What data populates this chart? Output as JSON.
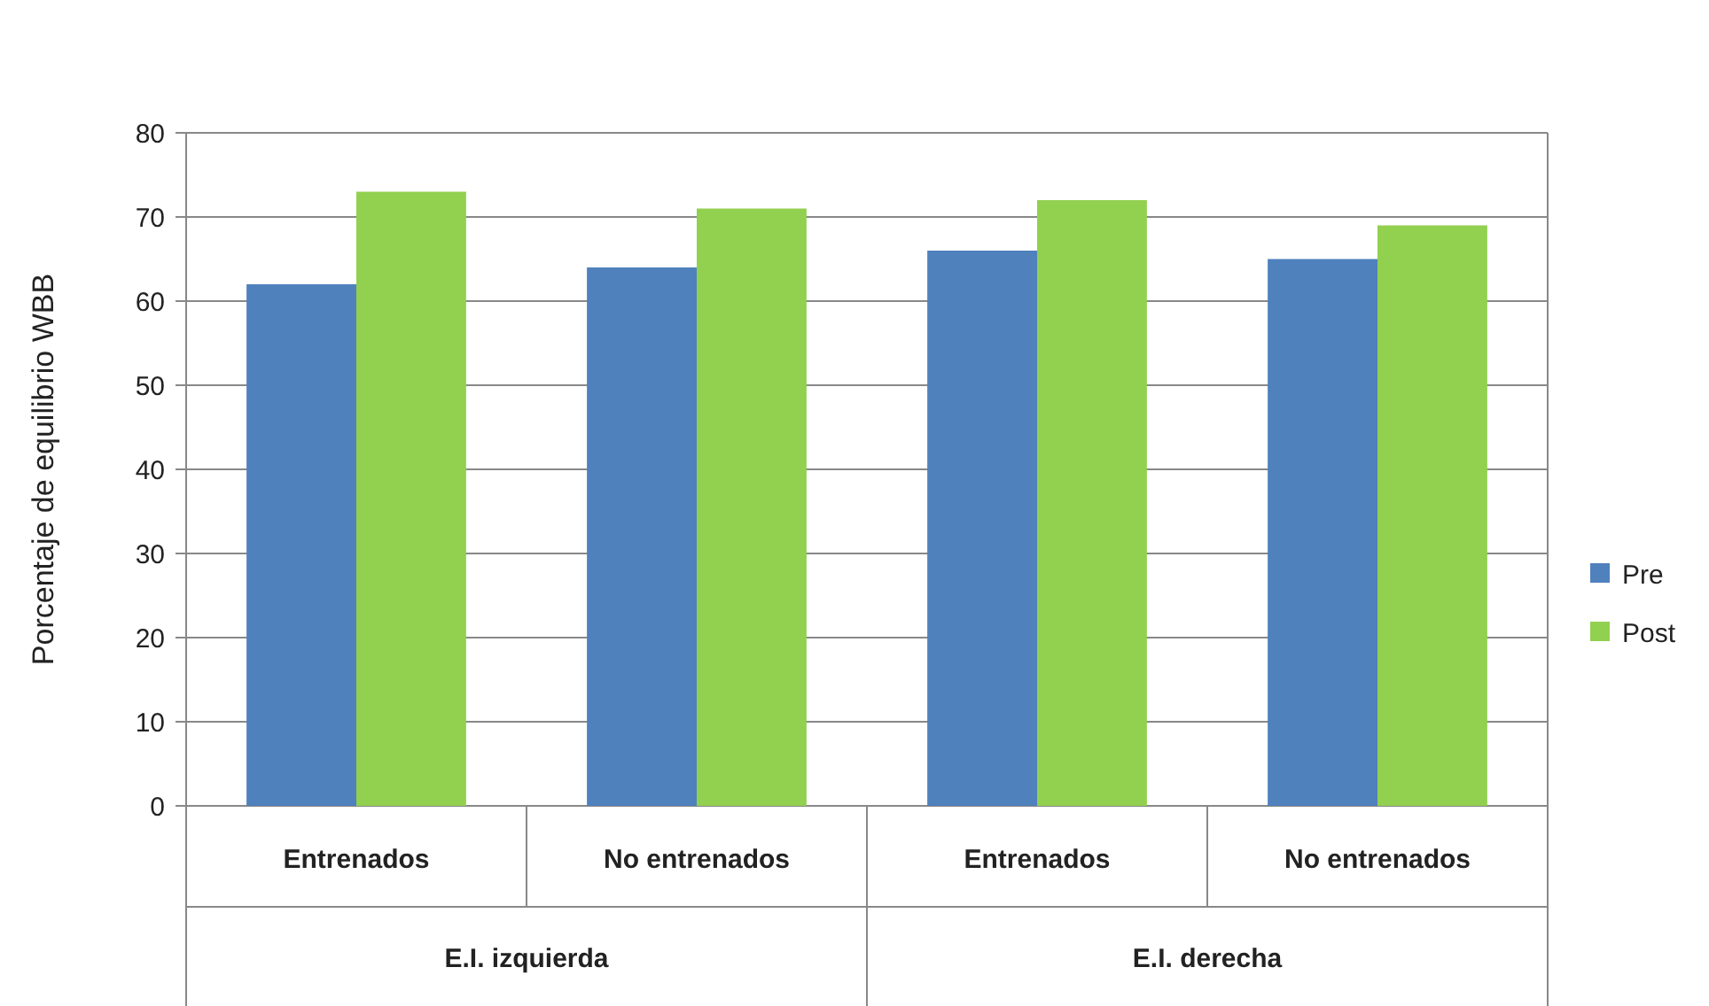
{
  "chart_data": {
    "type": "bar",
    "ylabel": "Porcentaje de equilibrio WBB",
    "categories": [
      "Entrenados",
      "No entrenados",
      "Entrenados",
      "No entrenados"
    ],
    "series": [
      {
        "name": "Pre",
        "color": "#4f81bd",
        "values": [
          62,
          64,
          66,
          65
        ]
      },
      {
        "name": "Post",
        "color": "#92d050",
        "values": [
          73,
          71,
          72,
          69
        ]
      }
    ],
    "ylim": [
      0,
      80
    ],
    "yticks": [
      0,
      10,
      20,
      30,
      40,
      50,
      60,
      70,
      80
    ],
    "grid": "y",
    "legend": "right",
    "annotations": [
      "E.I. izquierda",
      "E.I. derecha"
    ]
  }
}
